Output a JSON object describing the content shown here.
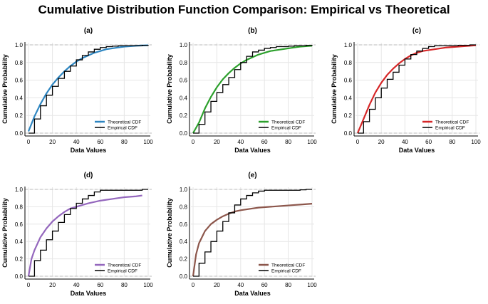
{
  "title": "Cumulative Distribution Function Comparison: Empirical vs Theoretical",
  "colors": {
    "theoretical": [
      "#2e86c1",
      "#2ca02c",
      "#d62728",
      "#9467bd",
      "#8c564b"
    ],
    "empirical": "#000000",
    "grid": "#e6e6e6",
    "hline": "#bbbbbb"
  },
  "chart_data": [
    {
      "type": "line",
      "panel_label": "(a)",
      "xlabel": "Data Values",
      "ylabel": "Cumulative Probability",
      "xlim": [
        0,
        100
      ],
      "ylim": [
        0,
        1
      ],
      "xticks": [
        "0",
        "20",
        "40",
        "60",
        "80",
        "100"
      ],
      "yticks": [
        "0.0",
        "0.2",
        "0.4",
        "0.6",
        "0.8",
        "1.0"
      ],
      "legend_position": "bottom-right",
      "series": [
        {
          "name": "Theoretical CDF",
          "kind": "line",
          "x": [
            0,
            5,
            10,
            15,
            20,
            25,
            30,
            35,
            40,
            45,
            50,
            55,
            60,
            65,
            70,
            75,
            80,
            85,
            90,
            95,
            100
          ],
          "y": [
            0.02,
            0.19,
            0.33,
            0.45,
            0.55,
            0.63,
            0.7,
            0.76,
            0.81,
            0.85,
            0.88,
            0.91,
            0.93,
            0.95,
            0.96,
            0.97,
            0.98,
            0.985,
            0.99,
            0.993,
            0.995
          ]
        },
        {
          "name": "Empirical CDF",
          "kind": "step",
          "x": [
            0,
            5,
            10,
            15,
            20,
            25,
            30,
            35,
            40,
            45,
            50,
            55,
            60,
            65,
            70,
            75,
            80,
            85,
            90,
            95,
            100
          ],
          "y": [
            0.0,
            0.16,
            0.31,
            0.43,
            0.53,
            0.62,
            0.7,
            0.76,
            0.83,
            0.88,
            0.92,
            0.95,
            0.97,
            0.98,
            0.985,
            0.99,
            0.99,
            0.99,
            0.99,
            0.995,
            1.0
          ]
        }
      ]
    },
    {
      "type": "line",
      "panel_label": "(b)",
      "xlabel": "Data Values",
      "ylabel": "Cumulative Probability",
      "xlim": [
        0,
        100
      ],
      "ylim": [
        0,
        1
      ],
      "xticks": [
        "0",
        "20",
        "40",
        "60",
        "80",
        "100"
      ],
      "yticks": [
        "0.0",
        "0.2",
        "0.4",
        "0.6",
        "0.8",
        "1.0"
      ],
      "legend_position": "bottom-right",
      "series": [
        {
          "name": "Theoretical CDF",
          "kind": "line",
          "x": [
            0,
            5,
            10,
            15,
            20,
            25,
            30,
            35,
            40,
            45,
            50,
            55,
            60,
            65,
            70,
            75,
            80,
            85,
            90,
            95,
            100
          ],
          "y": [
            0.0,
            0.12,
            0.28,
            0.41,
            0.52,
            0.61,
            0.68,
            0.74,
            0.79,
            0.83,
            0.86,
            0.89,
            0.91,
            0.93,
            0.94,
            0.95,
            0.96,
            0.97,
            0.98,
            0.985,
            0.99
          ]
        },
        {
          "name": "Empirical CDF",
          "kind": "step",
          "x": [
            0,
            5,
            10,
            15,
            20,
            25,
            30,
            35,
            40,
            45,
            50,
            55,
            60,
            65,
            70,
            75,
            80,
            85,
            90,
            95,
            100
          ],
          "y": [
            0.0,
            0.1,
            0.24,
            0.36,
            0.46,
            0.55,
            0.63,
            0.72,
            0.8,
            0.87,
            0.92,
            0.94,
            0.96,
            0.97,
            0.98,
            0.98,
            0.985,
            0.99,
            0.99,
            0.995,
            1.0
          ]
        }
      ]
    },
    {
      "type": "line",
      "panel_label": "(c)",
      "xlabel": "Data Values",
      "ylabel": "Cumulative Probability",
      "xlim": [
        0,
        100
      ],
      "ylim": [
        0,
        1
      ],
      "xticks": [
        "0",
        "20",
        "40",
        "60",
        "80",
        "100"
      ],
      "yticks": [
        "0.0",
        "0.2",
        "0.4",
        "0.6",
        "0.8",
        "1.0"
      ],
      "legend_position": "bottom-right",
      "series": [
        {
          "name": "Theoretical CDF",
          "kind": "line",
          "x": [
            0,
            5,
            10,
            15,
            20,
            25,
            30,
            35,
            40,
            45,
            50,
            55,
            60,
            65,
            70,
            75,
            80,
            85,
            90,
            95,
            100
          ],
          "y": [
            0.0,
            0.16,
            0.32,
            0.46,
            0.57,
            0.66,
            0.73,
            0.79,
            0.84,
            0.88,
            0.91,
            0.93,
            0.94,
            0.95,
            0.96,
            0.97,
            0.975,
            0.98,
            0.985,
            0.99,
            0.995
          ]
        },
        {
          "name": "Empirical CDF",
          "kind": "step",
          "x": [
            0,
            5,
            10,
            15,
            20,
            25,
            30,
            35,
            40,
            45,
            50,
            55,
            60,
            65,
            70,
            75,
            80,
            85,
            90,
            95,
            100
          ],
          "y": [
            0.0,
            0.13,
            0.27,
            0.4,
            0.51,
            0.61,
            0.69,
            0.77,
            0.84,
            0.89,
            0.93,
            0.96,
            0.98,
            0.99,
            0.99,
            0.99,
            0.99,
            0.995,
            0.995,
            1.0,
            1.0
          ]
        }
      ]
    },
    {
      "type": "line",
      "panel_label": "(d)",
      "xlabel": "Data Values",
      "ylabel": "Cumulative Probability",
      "xlim": [
        0,
        100
      ],
      "ylim": [
        0,
        1
      ],
      "xticks": [
        "0",
        "20",
        "40",
        "60",
        "80",
        "100"
      ],
      "yticks": [
        "0.0",
        "0.2",
        "0.4",
        "0.6",
        "0.8",
        "1.0"
      ],
      "legend_position": "bottom-right",
      "series": [
        {
          "name": "Theoretical CDF",
          "kind": "line",
          "x": [
            0,
            2.5,
            5,
            10,
            15,
            20,
            25,
            30,
            35,
            40,
            45,
            50,
            55,
            60,
            65,
            70,
            75,
            80,
            85,
            90,
            95
          ],
          "y": [
            0.0,
            0.2,
            0.3,
            0.45,
            0.55,
            0.63,
            0.69,
            0.74,
            0.78,
            0.8,
            0.82,
            0.84,
            0.855,
            0.87,
            0.88,
            0.89,
            0.9,
            0.91,
            0.915,
            0.92,
            0.93
          ]
        },
        {
          "name": "Empirical CDF",
          "kind": "step",
          "x": [
            0,
            5,
            10,
            15,
            20,
            25,
            30,
            35,
            40,
            45,
            50,
            55,
            60,
            65,
            70,
            75,
            80,
            85,
            90,
            95,
            100
          ],
          "y": [
            0.0,
            0.18,
            0.3,
            0.42,
            0.52,
            0.62,
            0.71,
            0.78,
            0.84,
            0.89,
            0.93,
            0.97,
            0.99,
            0.99,
            0.99,
            0.99,
            0.99,
            0.99,
            0.99,
            1.0,
            1.0
          ]
        }
      ]
    },
    {
      "type": "line",
      "panel_label": "(e)",
      "xlabel": "Data Values",
      "ylabel": "Cumulative Probability",
      "xlim": [
        0,
        100
      ],
      "ylim": [
        0,
        1
      ],
      "xticks": [
        "0",
        "20",
        "40",
        "60",
        "80",
        "100"
      ],
      "yticks": [
        "0.0",
        "0.2",
        "0.4",
        "0.6",
        "0.8",
        "1.0"
      ],
      "legend_position": "bottom-right",
      "series": [
        {
          "name": "Theoretical CDF",
          "kind": "line",
          "x": [
            0,
            2.5,
            5,
            10,
            15,
            20,
            25,
            30,
            35,
            40,
            45,
            50,
            55,
            60,
            65,
            70,
            75,
            80,
            85,
            90,
            95,
            100
          ],
          "y": [
            0.0,
            0.25,
            0.38,
            0.52,
            0.6,
            0.65,
            0.69,
            0.72,
            0.745,
            0.76,
            0.77,
            0.78,
            0.79,
            0.795,
            0.8,
            0.805,
            0.81,
            0.815,
            0.82,
            0.825,
            0.83,
            0.835
          ]
        },
        {
          "name": "Empirical CDF",
          "kind": "step",
          "x": [
            0,
            5,
            10,
            15,
            20,
            25,
            30,
            35,
            40,
            45,
            50,
            55,
            60,
            65,
            70,
            75,
            80,
            85,
            90,
            95,
            100
          ],
          "y": [
            0.0,
            0.15,
            0.28,
            0.4,
            0.52,
            0.63,
            0.73,
            0.82,
            0.89,
            0.93,
            0.96,
            0.98,
            0.99,
            0.99,
            0.99,
            0.99,
            0.99,
            0.99,
            0.995,
            1.0,
            1.0
          ]
        }
      ]
    }
  ]
}
